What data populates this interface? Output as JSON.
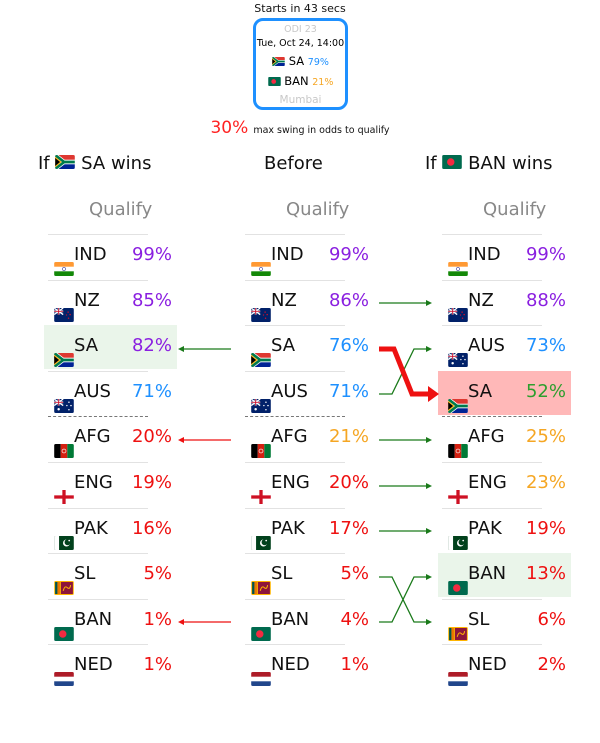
{
  "header": {
    "starts_in": "Starts in 43 secs"
  },
  "match": {
    "label": "ODI 23",
    "datetime": "Tue, Oct 24, 14:00",
    "team1": {
      "abbr": "SA",
      "pct": "79%",
      "flag": "flag-za"
    },
    "team2": {
      "abbr": "BAN",
      "pct": "21%",
      "flag": "flag-bd"
    },
    "venue": "Mumbai"
  },
  "swing": {
    "value": "30%",
    "label": "max swing in odds to qualify"
  },
  "columns": [
    {
      "title_prefix": "If",
      "title_team": "SA",
      "title_suffix": "wins",
      "title_flag": "flag-za",
      "subtitle": "Qualify",
      "rows": [
        {
          "abbr": "IND",
          "flag": "flag-in",
          "pct": "99%",
          "color": "#8a1fe0"
        },
        {
          "abbr": "NZ",
          "flag": "flag-nz",
          "pct": "85%",
          "color": "#8a1fe0"
        },
        {
          "abbr": "SA",
          "flag": "flag-za",
          "pct": "82%",
          "color": "#8a1fe0",
          "highlight": "green"
        },
        {
          "abbr": "AUS",
          "flag": "flag-au",
          "pct": "71%",
          "color": "#1e90ff"
        },
        {
          "abbr": "AFG",
          "flag": "flag-af",
          "pct": "20%",
          "color": "#ee1111"
        },
        {
          "abbr": "ENG",
          "flag": "flag-en",
          "pct": "19%",
          "color": "#ee1111"
        },
        {
          "abbr": "PAK",
          "flag": "flag-pk",
          "pct": "16%",
          "color": "#ee1111"
        },
        {
          "abbr": "SL",
          "flag": "flag-lk",
          "pct": "5%",
          "color": "#ee1111"
        },
        {
          "abbr": "BAN",
          "flag": "flag-bd",
          "pct": "1%",
          "color": "#ee1111"
        },
        {
          "abbr": "NED",
          "flag": "flag-nl",
          "pct": "1%",
          "color": "#ee1111"
        }
      ]
    },
    {
      "title": "Before",
      "subtitle": "Qualify",
      "rows": [
        {
          "abbr": "IND",
          "flag": "flag-in",
          "pct": "99%",
          "color": "#8a1fe0"
        },
        {
          "abbr": "NZ",
          "flag": "flag-nz",
          "pct": "86%",
          "color": "#8a1fe0"
        },
        {
          "abbr": "SA",
          "flag": "flag-za",
          "pct": "76%",
          "color": "#1e90ff"
        },
        {
          "abbr": "AUS",
          "flag": "flag-au",
          "pct": "71%",
          "color": "#1e90ff"
        },
        {
          "abbr": "AFG",
          "flag": "flag-af",
          "pct": "21%",
          "color": "#f5a623"
        },
        {
          "abbr": "ENG",
          "flag": "flag-en",
          "pct": "20%",
          "color": "#ee1111"
        },
        {
          "abbr": "PAK",
          "flag": "flag-pk",
          "pct": "17%",
          "color": "#ee1111"
        },
        {
          "abbr": "SL",
          "flag": "flag-lk",
          "pct": "5%",
          "color": "#ee1111"
        },
        {
          "abbr": "BAN",
          "flag": "flag-bd",
          "pct": "4%",
          "color": "#ee1111"
        },
        {
          "abbr": "NED",
          "flag": "flag-nl",
          "pct": "1%",
          "color": "#ee1111"
        }
      ]
    },
    {
      "title_prefix": "If",
      "title_team": "BAN",
      "title_suffix": "wins",
      "title_flag": "flag-bd",
      "subtitle": "Qualify",
      "rows": [
        {
          "abbr": "IND",
          "flag": "flag-in",
          "pct": "99%",
          "color": "#8a1fe0"
        },
        {
          "abbr": "NZ",
          "flag": "flag-nz",
          "pct": "88%",
          "color": "#8a1fe0"
        },
        {
          "abbr": "AUS",
          "flag": "flag-au",
          "pct": "73%",
          "color": "#1e90ff"
        },
        {
          "abbr": "SA",
          "flag": "flag-za",
          "pct": "52%",
          "color": "#2e9e2e",
          "highlight": "red"
        },
        {
          "abbr": "AFG",
          "flag": "flag-af",
          "pct": "25%",
          "color": "#f5a623"
        },
        {
          "abbr": "ENG",
          "flag": "flag-en",
          "pct": "23%",
          "color": "#f5a623"
        },
        {
          "abbr": "PAK",
          "flag": "flag-pk",
          "pct": "19%",
          "color": "#ee1111"
        },
        {
          "abbr": "BAN",
          "flag": "flag-bd",
          "pct": "13%",
          "color": "#ee1111",
          "highlight": "green"
        },
        {
          "abbr": "SL",
          "flag": "flag-lk",
          "pct": "6%",
          "color": "#ee1111"
        },
        {
          "abbr": "NED",
          "flag": "flag-nl",
          "pct": "2%",
          "color": "#ee1111"
        }
      ]
    }
  ]
}
